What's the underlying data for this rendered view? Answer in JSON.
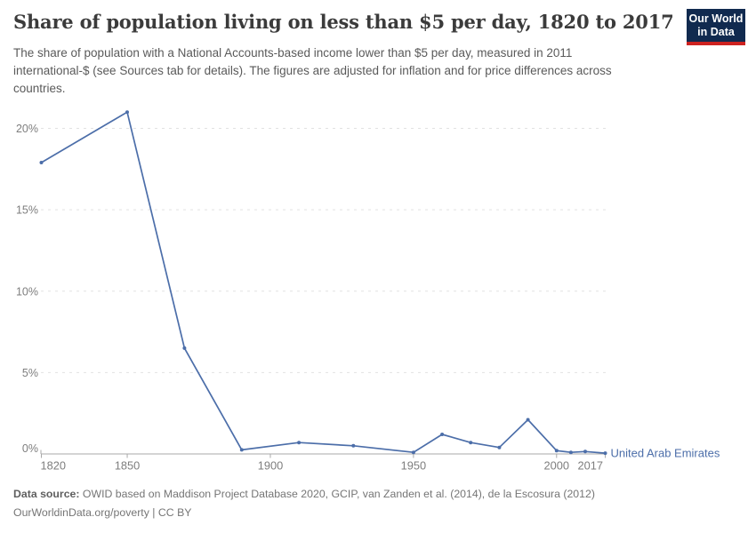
{
  "header": {
    "title": "Share of population living on less than $5 per day, 1820 to 2017",
    "subtitle": "The share of population with a National Accounts-based income lower than $5 per day, measured in 2011 international-$ (see Sources tab for details). The figures are adjusted for inflation and for price differences across countries.",
    "logo": {
      "line1": "Our World",
      "line2": "in Data",
      "bg_color": "#112a4f",
      "accent_color": "#cd2220"
    }
  },
  "chart_data": {
    "type": "line",
    "title": "Share of population living on less than $5 per day, 1820 to 2017",
    "x": [
      1820,
      1850,
      1870,
      1890,
      1910,
      1929,
      1950,
      1960,
      1970,
      1980,
      1990,
      2000,
      2005,
      2010,
      2017
    ],
    "series": [
      {
        "name": "United Arab Emirates",
        "color": "#4c6ea9",
        "values": [
          17.9,
          21.0,
          6.5,
          0.25,
          0.7,
          0.5,
          0.1,
          1.2,
          0.7,
          0.4,
          2.1,
          0.2,
          0.1,
          0.15,
          0.05
        ]
      }
    ],
    "xlabel": "",
    "ylabel": "",
    "xlim": [
      1820,
      2017
    ],
    "ylim": [
      0,
      21.6
    ],
    "x_ticks": [
      {
        "year": 1820,
        "label": "1820",
        "align": "start"
      },
      {
        "year": 1850,
        "label": "1850",
        "align": "middle"
      },
      {
        "year": 1900,
        "label": "1900",
        "align": "middle"
      },
      {
        "year": 1950,
        "label": "1950",
        "align": "middle"
      },
      {
        "year": 2000,
        "label": "2000",
        "align": "middle"
      },
      {
        "year": 2017,
        "label": "2017",
        "align": "end"
      }
    ],
    "y_ticks": [
      {
        "value": 0,
        "label": "0%"
      },
      {
        "value": 5,
        "label": "5%"
      },
      {
        "value": 10,
        "label": "10%"
      },
      {
        "value": 15,
        "label": "15%"
      },
      {
        "value": 20,
        "label": "20%"
      }
    ],
    "grid": "horizontal-dashed",
    "legend_position": "line-end-label",
    "colors": {
      "grid": "#e2e2e2",
      "axis": "#a9a9a9",
      "tick_label": "#7e7e7e"
    }
  },
  "footer": {
    "source_label": "Data source:",
    "source_text": "OWID based on Maddison Project Database 2020, GCIP, van Zanden et al. (2014), de la Escosura (2012)",
    "license": "OurWorldinData.org/poverty | CC BY"
  }
}
